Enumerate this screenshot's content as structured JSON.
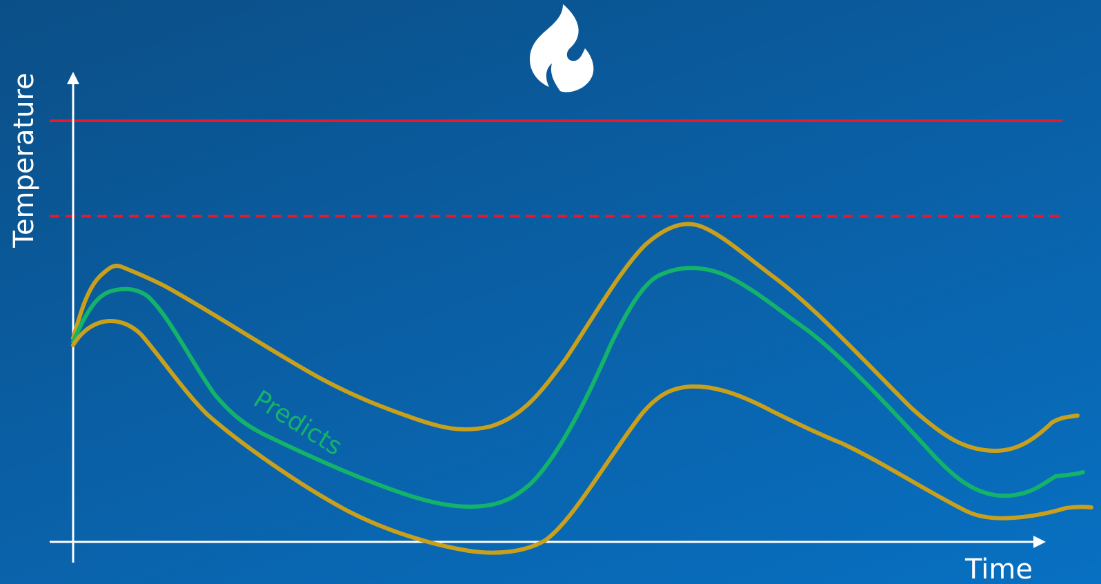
{
  "chart_data": {
    "type": "line",
    "xlabel": "Time",
    "ylabel": "Temperature",
    "annotation": "Predicts",
    "icon": "flame-icon",
    "colors": {
      "background_top": "#0b4f87",
      "background_bottom": "#0870c2",
      "axes": "#ffffff",
      "limit_line": "#e8192c",
      "warning_line": "#e8192c",
      "prediction": "#13b36a",
      "bounds": "#c9a01c"
    },
    "reference_lines": [
      {
        "style": "solid",
        "color": "#e8192c"
      },
      {
        "style": "dashed",
        "color": "#e8192c"
      }
    ]
  }
}
